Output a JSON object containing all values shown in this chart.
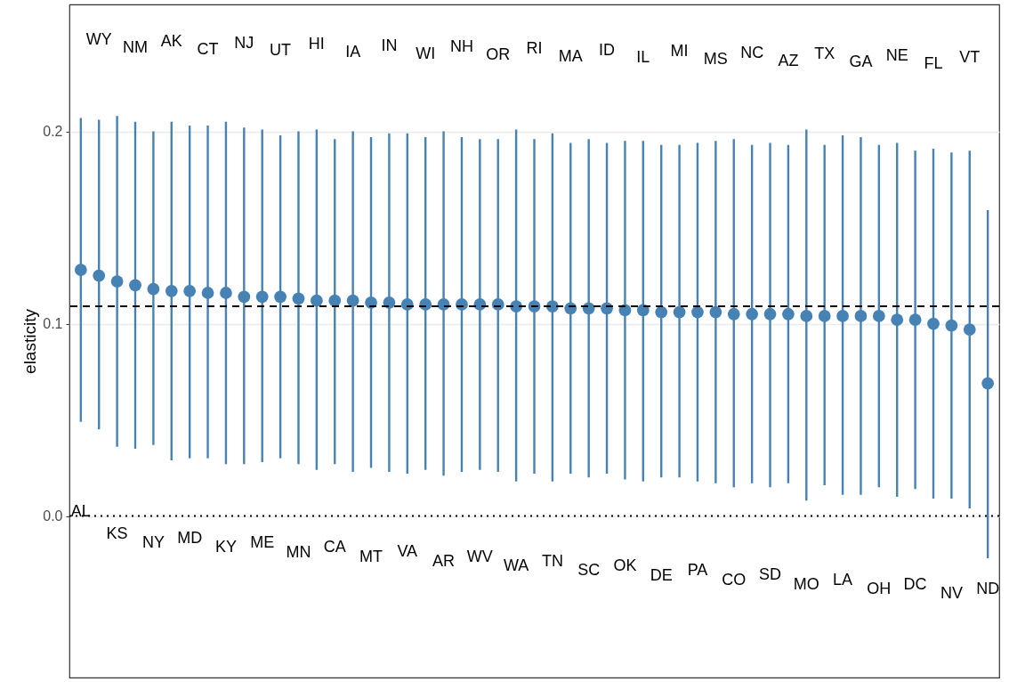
{
  "chart_data": {
    "type": "scatter",
    "ylabel": "elasticity",
    "categories": [
      null,
      null,
      null,
      null,
      null,
      null,
      null,
      null,
      null,
      null,
      null,
      null,
      null,
      null,
      null,
      null,
      null,
      null,
      null,
      null,
      null,
      null,
      null,
      null,
      null,
      null,
      null,
      null,
      null,
      null,
      null,
      null,
      null,
      null,
      null,
      null,
      null,
      null,
      null,
      null,
      null,
      null,
      null,
      null,
      null,
      null,
      null,
      null,
      null,
      null,
      null
    ],
    "series": [
      {
        "color": "#4682b4",
        "values": [
          0.128,
          0.125,
          0.122,
          0.12,
          0.118,
          0.117,
          0.117,
          0.116,
          0.116,
          0.114,
          0.114,
          0.114,
          0.113,
          0.112,
          0.112,
          0.112,
          0.111,
          0.111,
          0.11,
          0.11,
          0.11,
          0.11,
          0.11,
          0.11,
          0.109,
          0.109,
          0.109,
          0.108,
          0.108,
          0.108,
          0.107,
          0.107,
          0.106,
          0.106,
          0.106,
          0.106,
          0.105,
          0.105,
          0.105,
          0.105,
          0.104,
          0.104,
          0.104,
          0.104,
          0.104,
          0.102,
          0.102,
          0.1,
          0.099,
          0.097,
          0.069
        ],
        "errors": [
          [
            0.049,
            0.207
          ],
          [
            0.045,
            0.206
          ],
          [
            0.036,
            0.208
          ],
          [
            0.035,
            0.205
          ],
          [
            0.037,
            0.2
          ],
          [
            0.029,
            0.205
          ],
          [
            0.03,
            0.203
          ],
          [
            0.03,
            0.203
          ],
          [
            0.027,
            0.205
          ],
          [
            0.027,
            0.202
          ],
          [
            0.028,
            0.201
          ],
          [
            0.03,
            0.198
          ],
          [
            0.027,
            0.2
          ],
          [
            0.024,
            0.201
          ],
          [
            0.027,
            0.196
          ],
          [
            0.023,
            0.2
          ],
          [
            0.025,
            0.197
          ],
          [
            0.023,
            0.199
          ],
          [
            0.022,
            0.199
          ],
          [
            0.024,
            0.197
          ],
          [
            0.021,
            0.2
          ],
          [
            0.023,
            0.197
          ],
          [
            0.024,
            0.196
          ],
          [
            0.023,
            0.196
          ],
          [
            0.018,
            0.201
          ],
          [
            0.022,
            0.196
          ],
          [
            0.018,
            0.199
          ],
          [
            0.022,
            0.194
          ],
          [
            0.02,
            0.196
          ],
          [
            0.022,
            0.194
          ],
          [
            0.019,
            0.195
          ],
          [
            0.018,
            0.195
          ],
          [
            0.02,
            0.193
          ],
          [
            0.02,
            0.193
          ],
          [
            0.018,
            0.194
          ],
          [
            0.017,
            0.195
          ],
          [
            0.015,
            0.196
          ],
          [
            0.017,
            0.193
          ],
          [
            0.015,
            0.194
          ],
          [
            0.017,
            0.193
          ],
          [
            0.008,
            0.201
          ],
          [
            0.016,
            0.193
          ],
          [
            0.011,
            0.198
          ],
          [
            0.011,
            0.197
          ],
          [
            0.015,
            0.193
          ],
          [
            0.01,
            0.194
          ],
          [
            0.014,
            0.19
          ],
          [
            0.009,
            0.191
          ],
          [
            0.009,
            0.189
          ],
          [
            0.004,
            0.19
          ],
          [
            -0.022,
            0.159
          ]
        ]
      }
    ],
    "ylim": [
      -0.084,
      0.266
    ],
    "yticks": [
      {
        "value": 0,
        "label": "0.0"
      },
      {
        "value": 0.1,
        "label": "0.1"
      },
      {
        "value": 0.2,
        "label": "0.2"
      }
    ],
    "grid": "y",
    "marker": "circle",
    "tick_labels": "y",
    "ref_lines": [
      {
        "axis": "y",
        "value": 0.109,
        "color": "#000000",
        "line_style": "dashed"
      },
      {
        "axis": "y",
        "value": 0,
        "color": "#000000",
        "line_style": "dotted"
      }
    ],
    "annotations": [
      "AL",
      "WY",
      "KS",
      "NM",
      "NY",
      "AK",
      "MD",
      "CT",
      "KY",
      "NJ",
      "ME",
      "UT",
      "MN",
      "HI",
      "CA",
      "IA",
      "MT",
      "IN",
      "VA",
      "WI",
      "AR",
      "NH",
      "WV",
      "OR",
      "WA",
      "RI",
      "TN",
      "MA",
      "SC",
      "ID",
      "OK",
      "IL",
      "DE",
      "MI",
      "PA",
      "MS",
      "CO",
      "NC",
      "SD",
      "AZ",
      "MO",
      "TX",
      "LA",
      "GA",
      "OH",
      "NE",
      "DC",
      "FL",
      "NV",
      "VT",
      "ND"
    ]
  }
}
